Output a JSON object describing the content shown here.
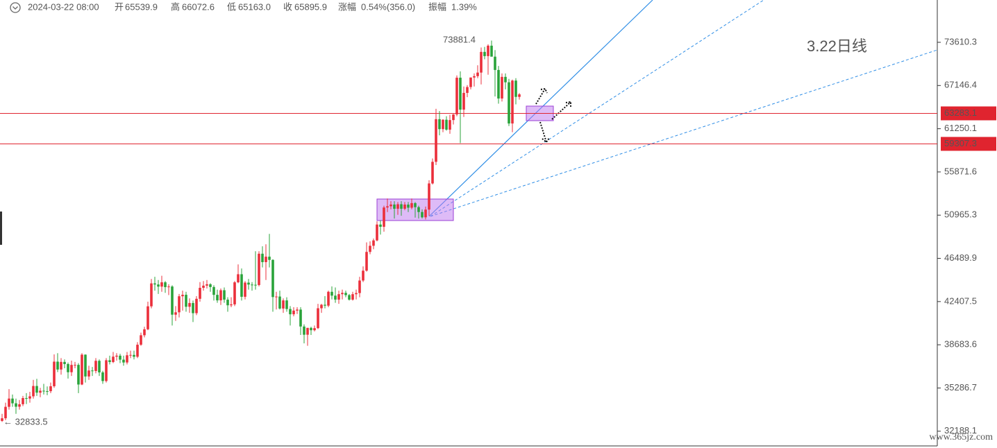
{
  "header": {
    "time": "2024-03-22 08:00",
    "items": [
      {
        "label": "开",
        "value": "65539.9"
      },
      {
        "label": "高",
        "value": "66072.6"
      },
      {
        "label": "低",
        "value": "65163.0"
      },
      {
        "label": "收",
        "value": "65895.9"
      },
      {
        "label": "涨幅",
        "value": "0.54%(356.0)"
      },
      {
        "label": "振幅",
        "value": "1.39%"
      }
    ]
  },
  "chart_data": {
    "type": "candlestick",
    "log_scale": true,
    "up_color": "#eb2f3b",
    "down_color": "#2aa33a",
    "ylim": [
      31196,
      80540
    ],
    "yticks": [
      73610.3,
      67146.4,
      61250.1,
      55871.6,
      50965.3,
      46489.9,
      42407.5,
      38683.6,
      35286.7,
      32188.1
    ],
    "hlines": [
      {
        "value": 63283.1,
        "color": "#e0242f"
      },
      {
        "value": 59307.3,
        "color": "#e0242f"
      }
    ],
    "annotations": [
      {
        "text": "3.22日线",
        "color": "#e8262f"
      },
      {
        "text": "73881.4",
        "color": "#b0b0b0"
      },
      {
        "text": "← 32833.5",
        "color": "#b0b0b0"
      }
    ],
    "watermark": "www.365jz.com",
    "candles": [
      [
        32900,
        33400,
        32833.5,
        33086
      ],
      [
        33086,
        34200,
        32950,
        33901
      ],
      [
        33901,
        35200,
        33700,
        34502
      ],
      [
        34502,
        34800,
        33900,
        34156
      ],
      [
        34156,
        34500,
        33400,
        33909
      ],
      [
        33909,
        34400,
        33700,
        34089
      ],
      [
        34089,
        34700,
        33950,
        34538
      ],
      [
        34538,
        34900,
        34100,
        34502
      ],
      [
        34502,
        35000,
        34200,
        34667
      ],
      [
        34667,
        35900,
        34500,
        35437
      ],
      [
        35437,
        35980,
        34700,
        34938
      ],
      [
        34938,
        35300,
        34600,
        35081
      ],
      [
        35081,
        35600,
        34800,
        35050
      ],
      [
        35050,
        35400,
        34750,
        35047
      ],
      [
        35047,
        35700,
        34900,
        35418
      ],
      [
        35418,
        37900,
        35300,
        37320
      ],
      [
        37320,
        38000,
        36500,
        36701
      ],
      [
        36701,
        37600,
        36300,
        37300
      ],
      [
        37300,
        37500,
        36800,
        37130
      ],
      [
        37130,
        37250,
        36000,
        36491
      ],
      [
        36491,
        37400,
        36200,
        37064
      ],
      [
        37064,
        37300,
        36800,
        37065
      ],
      [
        37065,
        37200,
        34900,
        35548
      ],
      [
        35548,
        38000,
        35500,
        37880
      ],
      [
        37880,
        37900,
        35700,
        36163
      ],
      [
        36163,
        37000,
        35900,
        36625
      ],
      [
        36625,
        36900,
        36200,
        36585
      ],
      [
        36585,
        37600,
        36400,
        37387
      ],
      [
        37387,
        37500,
        36200,
        36477
      ],
      [
        36477,
        36600,
        35600,
        35813
      ],
      [
        35813,
        37600,
        35700,
        37432
      ],
      [
        37432,
        37800,
        37100,
        37289
      ],
      [
        37289,
        38100,
        37200,
        37720
      ],
      [
        37720,
        38000,
        37400,
        37797
      ],
      [
        37797,
        37950,
        37200,
        37479
      ],
      [
        37479,
        37800,
        37000,
        37254
      ],
      [
        37254,
        38100,
        37100,
        37831
      ],
      [
        37831,
        38200,
        37600,
        37858
      ],
      [
        37858,
        38200,
        37500,
        37712
      ],
      [
        37712,
        38900,
        37600,
        38688
      ],
      [
        38688,
        39700,
        38600,
        39476
      ],
      [
        39476,
        40200,
        39300,
        39979
      ],
      [
        39979,
        42400,
        39900,
        41980
      ],
      [
        41980,
        44500,
        41800,
        44080
      ],
      [
        44080,
        44700,
        43400,
        43977
      ],
      [
        43977,
        44400,
        43100,
        43779
      ],
      [
        43779,
        44800,
        43300,
        44181
      ],
      [
        44181,
        44300,
        43200,
        43732
      ],
      [
        43732,
        44000,
        43000,
        43788
      ],
      [
        43788,
        43900,
        40300,
        41241
      ],
      [
        41241,
        42000,
        40700,
        41450
      ],
      [
        41450,
        43100,
        41000,
        42890
      ],
      [
        42890,
        43400,
        41600,
        43023
      ],
      [
        43023,
        43300,
        41500,
        41941
      ],
      [
        41941,
        42700,
        41400,
        42278
      ],
      [
        42278,
        42500,
        40600,
        41374
      ],
      [
        41374,
        42900,
        41200,
        42658
      ],
      [
        42658,
        44200,
        42400,
        43665
      ],
      [
        43665,
        44300,
        43400,
        43869
      ],
      [
        43869,
        44400,
        43600,
        43997
      ],
      [
        43997,
        44100,
        43300,
        43740
      ],
      [
        43740,
        43900,
        42500,
        43017
      ],
      [
        43017,
        43500,
        42300,
        42516
      ],
      [
        42516,
        43600,
        42100,
        43442
      ],
      [
        43442,
        43700,
        42300,
        42581
      ],
      [
        42581,
        42800,
        41500,
        42073
      ],
      [
        42073,
        42800,
        41900,
        42156
      ],
      [
        42156,
        44300,
        42000,
        44180
      ],
      [
        44180,
        45900,
        44100,
        44946
      ],
      [
        44946,
        45500,
        42500,
        42842
      ],
      [
        42842,
        44300,
        42600,
        44152
      ],
      [
        44152,
        44500,
        43500,
        43969
      ],
      [
        43969,
        44200,
        43400,
        43950
      ],
      [
        43950,
        47200,
        43500,
        43927
      ],
      [
        43927,
        47200,
        43800,
        46952
      ],
      [
        46952,
        47700,
        45600,
        46120
      ],
      [
        46120,
        47900,
        44400,
        46655
      ],
      [
        46655,
        48970,
        45600,
        46339
      ],
      [
        46339,
        46400,
        41500,
        42818
      ],
      [
        42818,
        43300,
        41700,
        42864
      ],
      [
        42864,
        43400,
        41700,
        41784
      ],
      [
        41784,
        42700,
        41400,
        42512
      ],
      [
        42512,
        42800,
        41500,
        41741
      ],
      [
        41741,
        42000,
        40300,
        41277
      ],
      [
        41277,
        41900,
        41100,
        41600
      ],
      [
        41600,
        41900,
        41300,
        41691
      ],
      [
        41691,
        41900,
        39500,
        40217
      ],
      [
        40217,
        40400,
        38800,
        39520
      ],
      [
        39520,
        40100,
        38600,
        40100
      ],
      [
        40100,
        40200,
        39500,
        39900
      ],
      [
        39900,
        40300,
        39800,
        40077
      ],
      [
        40077,
        42200,
        40000,
        41808
      ],
      [
        41808,
        42200,
        41400,
        42119
      ],
      [
        42119,
        42900,
        41800,
        42041
      ],
      [
        42041,
        43400,
        41900,
        43298
      ],
      [
        43298,
        43800,
        42600,
        42946
      ],
      [
        42946,
        43700,
        42300,
        42583
      ],
      [
        42583,
        43400,
        42200,
        43081
      ],
      [
        43081,
        43500,
        42600,
        43200
      ],
      [
        43200,
        43400,
        42800,
        42995
      ],
      [
        42995,
        43100,
        42500,
        42579
      ],
      [
        42579,
        43300,
        42500,
        43078
      ],
      [
        43078,
        43500,
        42600,
        43183
      ],
      [
        43183,
        44700,
        42800,
        44349
      ],
      [
        44349,
        45700,
        44200,
        45288
      ],
      [
        45288,
        48100,
        45200,
        47132
      ],
      [
        47132,
        48200,
        46900,
        47751
      ],
      [
        47751,
        48500,
        47400,
        48300
      ],
      [
        48300,
        50300,
        48200,
        49958
      ],
      [
        49958,
        50400,
        48900,
        49717
      ],
      [
        49717,
        52000,
        49200,
        51801
      ],
      [
        51801,
        52800,
        51300,
        51938
      ],
      [
        51938,
        52500,
        51600,
        52129
      ],
      [
        52129,
        52500,
        50600,
        51661
      ],
      [
        51661,
        52400,
        51000,
        52160
      ],
      [
        52160,
        52500,
        50900,
        51663
      ],
      [
        51663,
        52400,
        51500,
        52123
      ],
      [
        52123,
        52400,
        51300,
        51779
      ],
      [
        51779,
        52800,
        51600,
        52285
      ],
      [
        52285,
        52400,
        50700,
        51839
      ],
      [
        51839,
        52000,
        50600,
        51305
      ],
      [
        51305,
        51600,
        50600,
        50731
      ],
      [
        50731,
        51900,
        50500,
        51571
      ],
      [
        51571,
        54900,
        50900,
        54522
      ],
      [
        54522,
        57500,
        54400,
        57086
      ],
      [
        57086,
        63900,
        56700,
        62504
      ],
      [
        62504,
        63600,
        60400,
        61198
      ],
      [
        61198,
        62500,
        60800,
        62432
      ],
      [
        62432,
        62900,
        61000,
        61130
      ],
      [
        61130,
        63100,
        60600,
        62387
      ],
      [
        62387,
        63200,
        61800,
        63137
      ],
      [
        63137,
        68600,
        62900,
        68270
      ],
      [
        68270,
        69200,
        59400,
        63790
      ],
      [
        63790,
        67000,
        62800,
        66099
      ],
      [
        66099,
        67200,
        65500,
        66925
      ],
      [
        66925,
        68300,
        66600,
        68300
      ],
      [
        68300,
        68900,
        67000,
        68498
      ],
      [
        68498,
        70100,
        68200,
        69019
      ],
      [
        69019,
        72800,
        67300,
        72123
      ],
      [
        72123,
        72900,
        71000,
        71481
      ],
      [
        71481,
        73300,
        68700,
        73083
      ],
      [
        73083,
        73881.4,
        71400,
        71397
      ],
      [
        71397,
        72400,
        65600,
        69403
      ],
      [
        69403,
        70000,
        64600,
        65315
      ],
      [
        65315,
        68900,
        64900,
        68391
      ],
      [
        68391,
        68900,
        66600,
        67609
      ],
      [
        67609,
        68100,
        61600,
        61937
      ],
      [
        61937,
        68000,
        60800,
        67854
      ],
      [
        67854,
        68200,
        64500,
        65539.9
      ],
      [
        65539.9,
        66072.6,
        65163.0,
        65895.9
      ]
    ]
  }
}
